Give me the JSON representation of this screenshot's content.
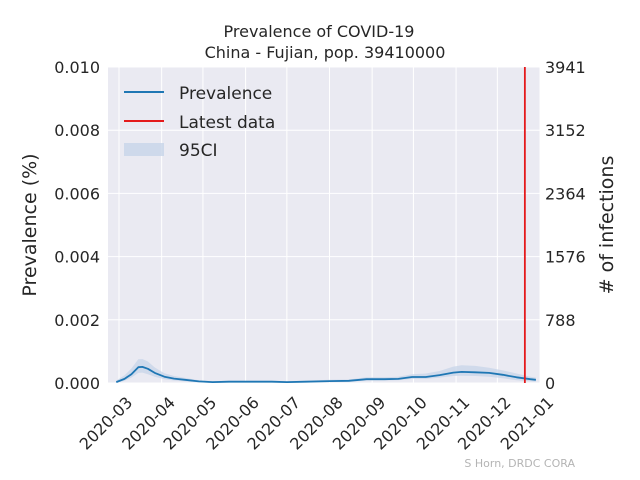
{
  "chart_data": {
    "type": "line",
    "title_line1": "Prevalence of COVID-19",
    "title_line2": "China - Fujian, pop. 39410000",
    "ylabel": "Prevalence (%)",
    "ylabel_right": "# of infections",
    "ylim": [
      0,
      0.01
    ],
    "yticks": [
      "0.000",
      "0.002",
      "0.004",
      "0.006",
      "0.008",
      "0.010"
    ],
    "yticks_right": [
      "0",
      "788",
      "1576",
      "2364",
      "3152",
      "3941"
    ],
    "xlim": [
      "2020-02-22",
      "2021-01-01"
    ],
    "xticks": [
      "2020-03",
      "2020-04",
      "2020-05",
      "2020-06",
      "2020-07",
      "2020-08",
      "2020-09",
      "2020-10",
      "2020-11",
      "2020-12",
      "2021-01"
    ],
    "latest_date": "2020-12-21",
    "legend": {
      "placement": "top-left",
      "items": [
        "Prevalence",
        "Latest data",
        "95CI"
      ]
    },
    "colors": {
      "line": "#1f77b4",
      "latest": "#e41a1c",
      "ci": "#c7d4e8",
      "background": "#eaeaf2",
      "grid": "#ffffff"
    },
    "grid": true,
    "credit": "S Horn, DRDC CORA",
    "series": [
      {
        "name": "Prevalence",
        "x": [
          "2020-02-28",
          "2020-03-05",
          "2020-03-10",
          "2020-03-15",
          "2020-03-18",
          "2020-03-22",
          "2020-03-27",
          "2020-04-03",
          "2020-04-10",
          "2020-04-18",
          "2020-04-28",
          "2020-05-08",
          "2020-05-20",
          "2020-06-05",
          "2020-06-20",
          "2020-07-01",
          "2020-07-15",
          "2020-08-01",
          "2020-08-15",
          "2020-08-28",
          "2020-09-10",
          "2020-09-20",
          "2020-09-30",
          "2020-10-10",
          "2020-10-20",
          "2020-10-30",
          "2020-11-05",
          "2020-11-15",
          "2020-11-25",
          "2020-12-05",
          "2020-12-15",
          "2020-12-25",
          "2020-12-29"
        ],
        "y": [
          3e-05,
          0.00013,
          0.00028,
          0.0005,
          0.00051,
          0.00045,
          0.00032,
          0.0002,
          0.00014,
          0.0001,
          5e-05,
          3e-05,
          4e-05,
          4e-05,
          4e-05,
          3e-05,
          4e-05,
          6e-05,
          7e-05,
          0.00012,
          0.00012,
          0.00013,
          0.00019,
          0.00019,
          0.00025,
          0.00033,
          0.00035,
          0.00034,
          0.00032,
          0.00026,
          0.00018,
          0.00012,
          0.0001
        ],
        "ci_low": [
          0.0,
          7e-05,
          0.00017,
          0.00032,
          0.00033,
          0.00028,
          0.0002,
          0.00012,
          8e-05,
          5e-05,
          2e-05,
          1e-05,
          2e-05,
          2e-05,
          2e-05,
          1e-05,
          2e-05,
          3e-05,
          4e-05,
          8e-05,
          8e-05,
          9e-05,
          0.00013,
          0.00013,
          0.00017,
          0.00022,
          0.00023,
          0.00022,
          0.0002,
          0.00015,
          9e-05,
          5e-05,
          4e-05
        ],
        "ci_high": [
          8e-05,
          0.00024,
          0.00046,
          0.00075,
          0.00076,
          0.00068,
          0.00049,
          0.00031,
          0.00022,
          0.00016,
          9e-05,
          6e-05,
          7e-05,
          7e-05,
          7e-05,
          6e-05,
          7e-05,
          0.0001,
          0.00011,
          0.00018,
          0.00018,
          0.0002,
          0.00028,
          0.0003,
          0.00038,
          0.00052,
          0.00056,
          0.00054,
          0.00048,
          0.0004,
          0.0003,
          0.0002,
          0.00017
        ]
      }
    ]
  }
}
